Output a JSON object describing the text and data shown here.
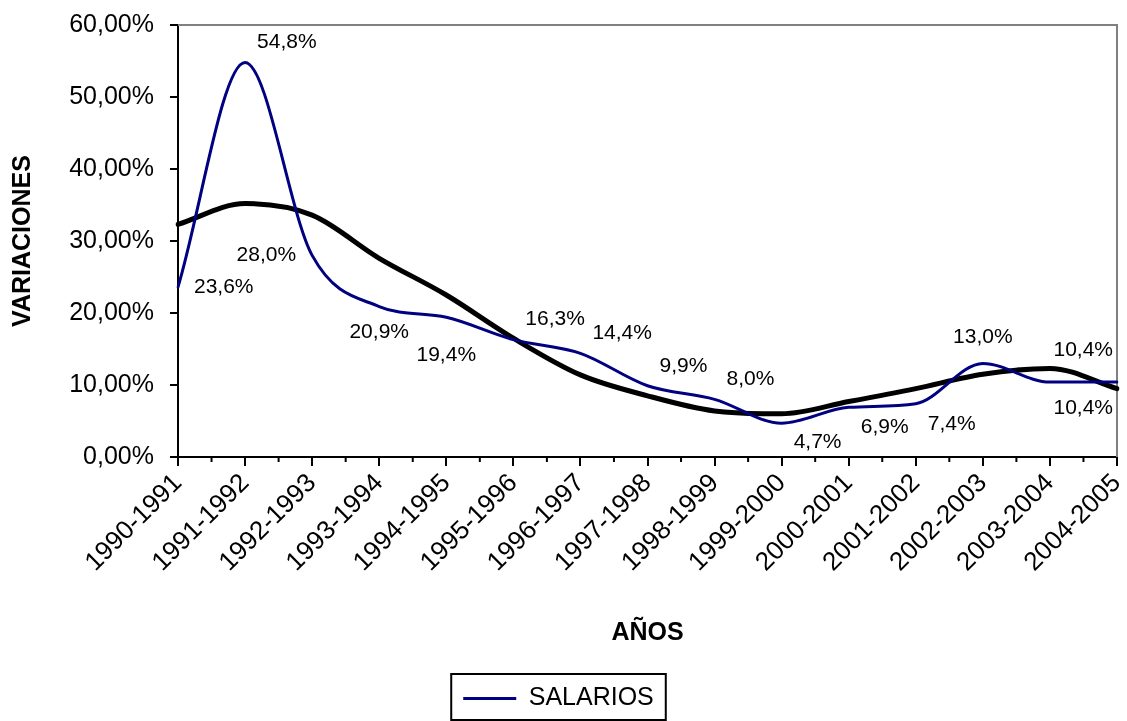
{
  "chart_data": {
    "type": "line",
    "xlabel": "AÑOS",
    "ylabel": "VARIACIONES",
    "categories": [
      "1990-1991",
      "1991-1992",
      "1992-1993",
      "1993-1994",
      "1994-1995",
      "1995-1996",
      "1996-1997",
      "1997-1998",
      "1998-1999",
      "1999-2000",
      "2000-2001",
      "2001-2002",
      "2002-2003",
      "2003-2004",
      "2004-2005"
    ],
    "series": [
      {
        "name": "SALARIOS",
        "color": "#000080",
        "values": [
          23.6,
          54.8,
          28.0,
          20.9,
          19.4,
          16.3,
          14.4,
          9.9,
          8.0,
          4.7,
          6.9,
          7.4,
          13.0,
          10.4,
          10.4
        ],
        "value_labels": [
          "23,6%",
          "54,8%",
          "28,0%",
          "20,9%",
          "19,4%",
          "16,3%",
          "14,4%",
          "9,9%",
          "8,0%",
          "4,7%",
          "6,9%",
          "7,4%",
          "13,0%",
          "10,4%",
          "10,4%"
        ]
      },
      {
        "color": "#000000",
        "values": [
          32.3,
          35.2,
          33.6,
          27.6,
          22.5,
          16.5,
          11.4,
          8.5,
          6.4,
          6.0,
          7.7,
          9.5,
          11.5,
          12.3,
          9.5
        ]
      }
    ],
    "ylim": [
      0,
      60
    ],
    "yticks": [
      {
        "value": 0,
        "label": "0,00%"
      },
      {
        "value": 10,
        "label": "10,00%"
      },
      {
        "value": 20,
        "label": "20,00%"
      },
      {
        "value": 30,
        "label": "30,00%"
      },
      {
        "value": 40,
        "label": "40,00%"
      },
      {
        "value": 50,
        "label": "50,00%"
      },
      {
        "value": 60,
        "label": "60,00%"
      }
    ],
    "legend": "bottom"
  }
}
